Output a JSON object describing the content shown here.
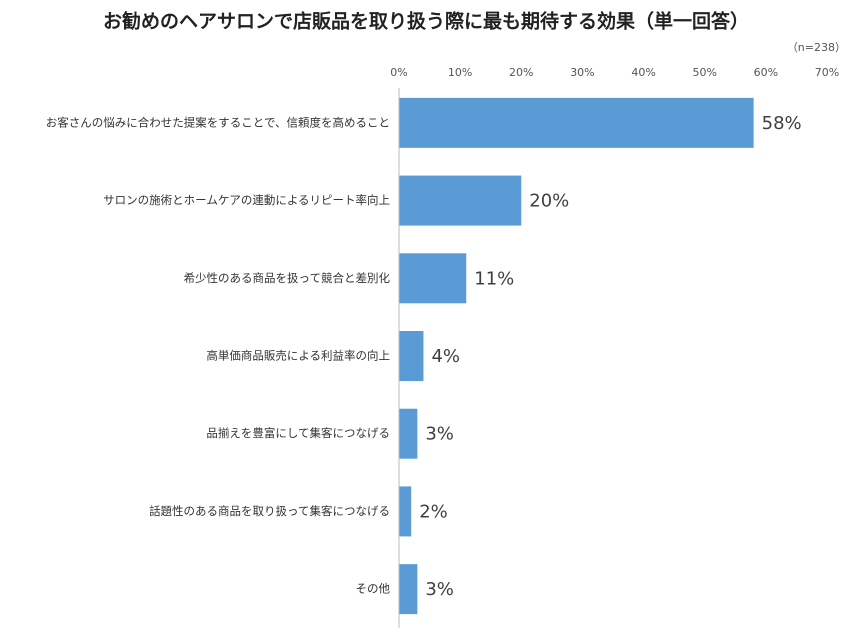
{
  "chart_data": {
    "type": "bar",
    "orientation": "horizontal",
    "title": "お勧めのヘアサロンで店販品を取り扱う際に最も期待する効果（単一回答）",
    "subtitle": "（n=238）",
    "categories": [
      "お客さんの悩みに合わせた提案をすることで、信頼度を高めること",
      "サロンの施術とホームケアの連動によるリピート率向上",
      "希少性のある商品を扱って競合と差別化",
      "高単価商品販売による利益率の向上",
      "品揃えを豊富にして集客につなげる",
      "話題性のある商品を取り扱って集客につなげる",
      "その他"
    ],
    "values": [
      58,
      20,
      11,
      4,
      3,
      2,
      3
    ],
    "value_labels": [
      "58%",
      "20%",
      "11%",
      "4%",
      "3%",
      "2%",
      "3%"
    ],
    "color": "#5b9bd5",
    "xlim": [
      0,
      70
    ],
    "xticks": [
      {
        "value": 0,
        "label": "0%"
      },
      {
        "value": 10,
        "label": "10%"
      },
      {
        "value": 20,
        "label": "20%"
      },
      {
        "value": 30,
        "label": "30%"
      },
      {
        "value": 40,
        "label": "40%"
      },
      {
        "value": 50,
        "label": "50%"
      },
      {
        "value": 60,
        "label": "60%"
      },
      {
        "value": 70,
        "label": "70%"
      }
    ],
    "grid": false
  }
}
